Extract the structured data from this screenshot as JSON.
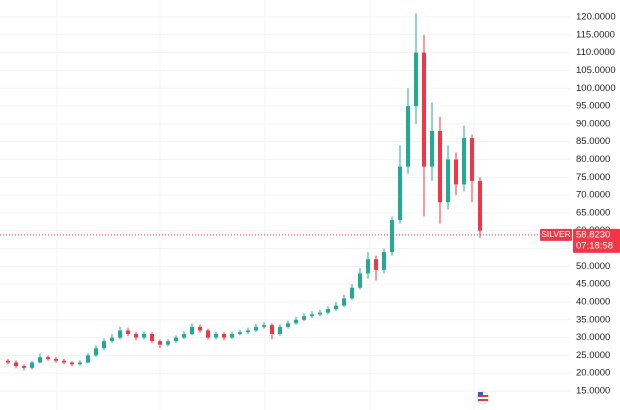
{
  "chart_data": {
    "type": "candlestick",
    "symbol": "SILVER",
    "last_price": {
      "value": 58.823,
      "label": "58.8230"
    },
    "countdown": "07:18:58",
    "up_color": "#22ab94",
    "down_color": "#f23645",
    "grid": true,
    "open": [
      23.5,
      23,
      22,
      21.5,
      23,
      24.5,
      24,
      23.5,
      23,
      22.5,
      23,
      25,
      27,
      29,
      30,
      32,
      31,
      30,
      31,
      29,
      28,
      29,
      30,
      31,
      33,
      32,
      30,
      31,
      30,
      31,
      31.5,
      32,
      33,
      33.5,
      31,
      33,
      34,
      35,
      36,
      36.5,
      37,
      38,
      39,
      41,
      44,
      48,
      52,
      49,
      54,
      63,
      78,
      95,
      110,
      78,
      88,
      68,
      80,
      73,
      86,
      74
    ],
    "high": [
      24,
      23.6,
      22.5,
      23.5,
      25.5,
      25,
      24.5,
      24,
      23.4,
      23.6,
      25.6,
      27.8,
      29.8,
      31,
      33,
      32.8,
      31.6,
      31.8,
      31.5,
      29.5,
      29.6,
      30.6,
      31.8,
      34,
      33.6,
      32.5,
      31.6,
      31.5,
      31.7,
      32.2,
      32.8,
      33.8,
      34.3,
      34,
      33.7,
      34.8,
      35.8,
      36.8,
      37.4,
      37.8,
      38.9,
      40,
      42,
      45,
      49.5,
      54,
      53,
      55,
      64,
      84,
      100,
      121,
      115,
      96,
      92,
      84,
      82,
      89.5,
      87,
      75
    ],
    "low": [
      22.5,
      21.4,
      20.8,
      21,
      22.8,
      23.5,
      23,
      22.6,
      22,
      22.2,
      22.8,
      24.6,
      26.5,
      28.5,
      29.5,
      30.4,
      29.2,
      29.5,
      28.4,
      27,
      27.5,
      28.5,
      29.6,
      30.6,
      31.4,
      29.4,
      29.5,
      29.2,
      29.6,
      30.6,
      31,
      31.6,
      32.5,
      29.5,
      30.5,
      32.5,
      33.6,
      34.6,
      35.5,
      36,
      36.5,
      37.5,
      38.6,
      40.5,
      43.5,
      46.5,
      46,
      48,
      53,
      62,
      76,
      90,
      64,
      74,
      62,
      66,
      70,
      71,
      68,
      58
    ],
    "close": [
      23,
      22,
      21.5,
      23,
      24.5,
      24,
      23.5,
      23,
      22.5,
      23,
      25,
      27,
      29,
      30,
      32,
      31,
      30,
      31,
      29,
      28,
      29,
      30,
      31,
      33,
      32,
      30,
      31,
      30,
      31,
      31.5,
      32,
      33,
      33.5,
      31,
      33,
      34,
      35,
      36,
      36.5,
      37,
      38,
      39,
      41,
      44,
      48,
      52,
      49,
      54,
      63,
      78,
      95,
      110,
      78,
      88,
      68,
      80,
      73,
      86,
      74,
      60
    ],
    "ylim": [
      15,
      120
    ],
    "yticks": [
      {
        "value": 15,
        "label": "15.0000"
      },
      {
        "value": 20,
        "label": "20.0000"
      },
      {
        "value": 25,
        "label": "25.0000"
      },
      {
        "value": 30,
        "label": "30.0000"
      },
      {
        "value": 35,
        "label": "35.0000"
      },
      {
        "value": 40,
        "label": "40.0000"
      },
      {
        "value": 45,
        "label": "45.0000"
      },
      {
        "value": 50,
        "label": "50.0000"
      },
      {
        "value": 55,
        "label": "55.0000"
      },
      {
        "value": 60,
        "label": "60.0000"
      },
      {
        "value": 65,
        "label": "65.0000"
      },
      {
        "value": 70,
        "label": "70.0000"
      },
      {
        "value": 75,
        "label": "75.0000"
      },
      {
        "value": 80,
        "label": "80.0000"
      },
      {
        "value": 85,
        "label": "85.0000"
      },
      {
        "value": 90,
        "label": "90.0000"
      },
      {
        "value": 95,
        "label": "95.0000"
      },
      {
        "value": 100,
        "label": "100.0000"
      },
      {
        "value": 105,
        "label": "105.0000"
      },
      {
        "value": 110,
        "label": "110.0000"
      },
      {
        "value": 115,
        "label": "115.0000"
      },
      {
        "value": 120,
        "label": "120.0000"
      }
    ]
  }
}
